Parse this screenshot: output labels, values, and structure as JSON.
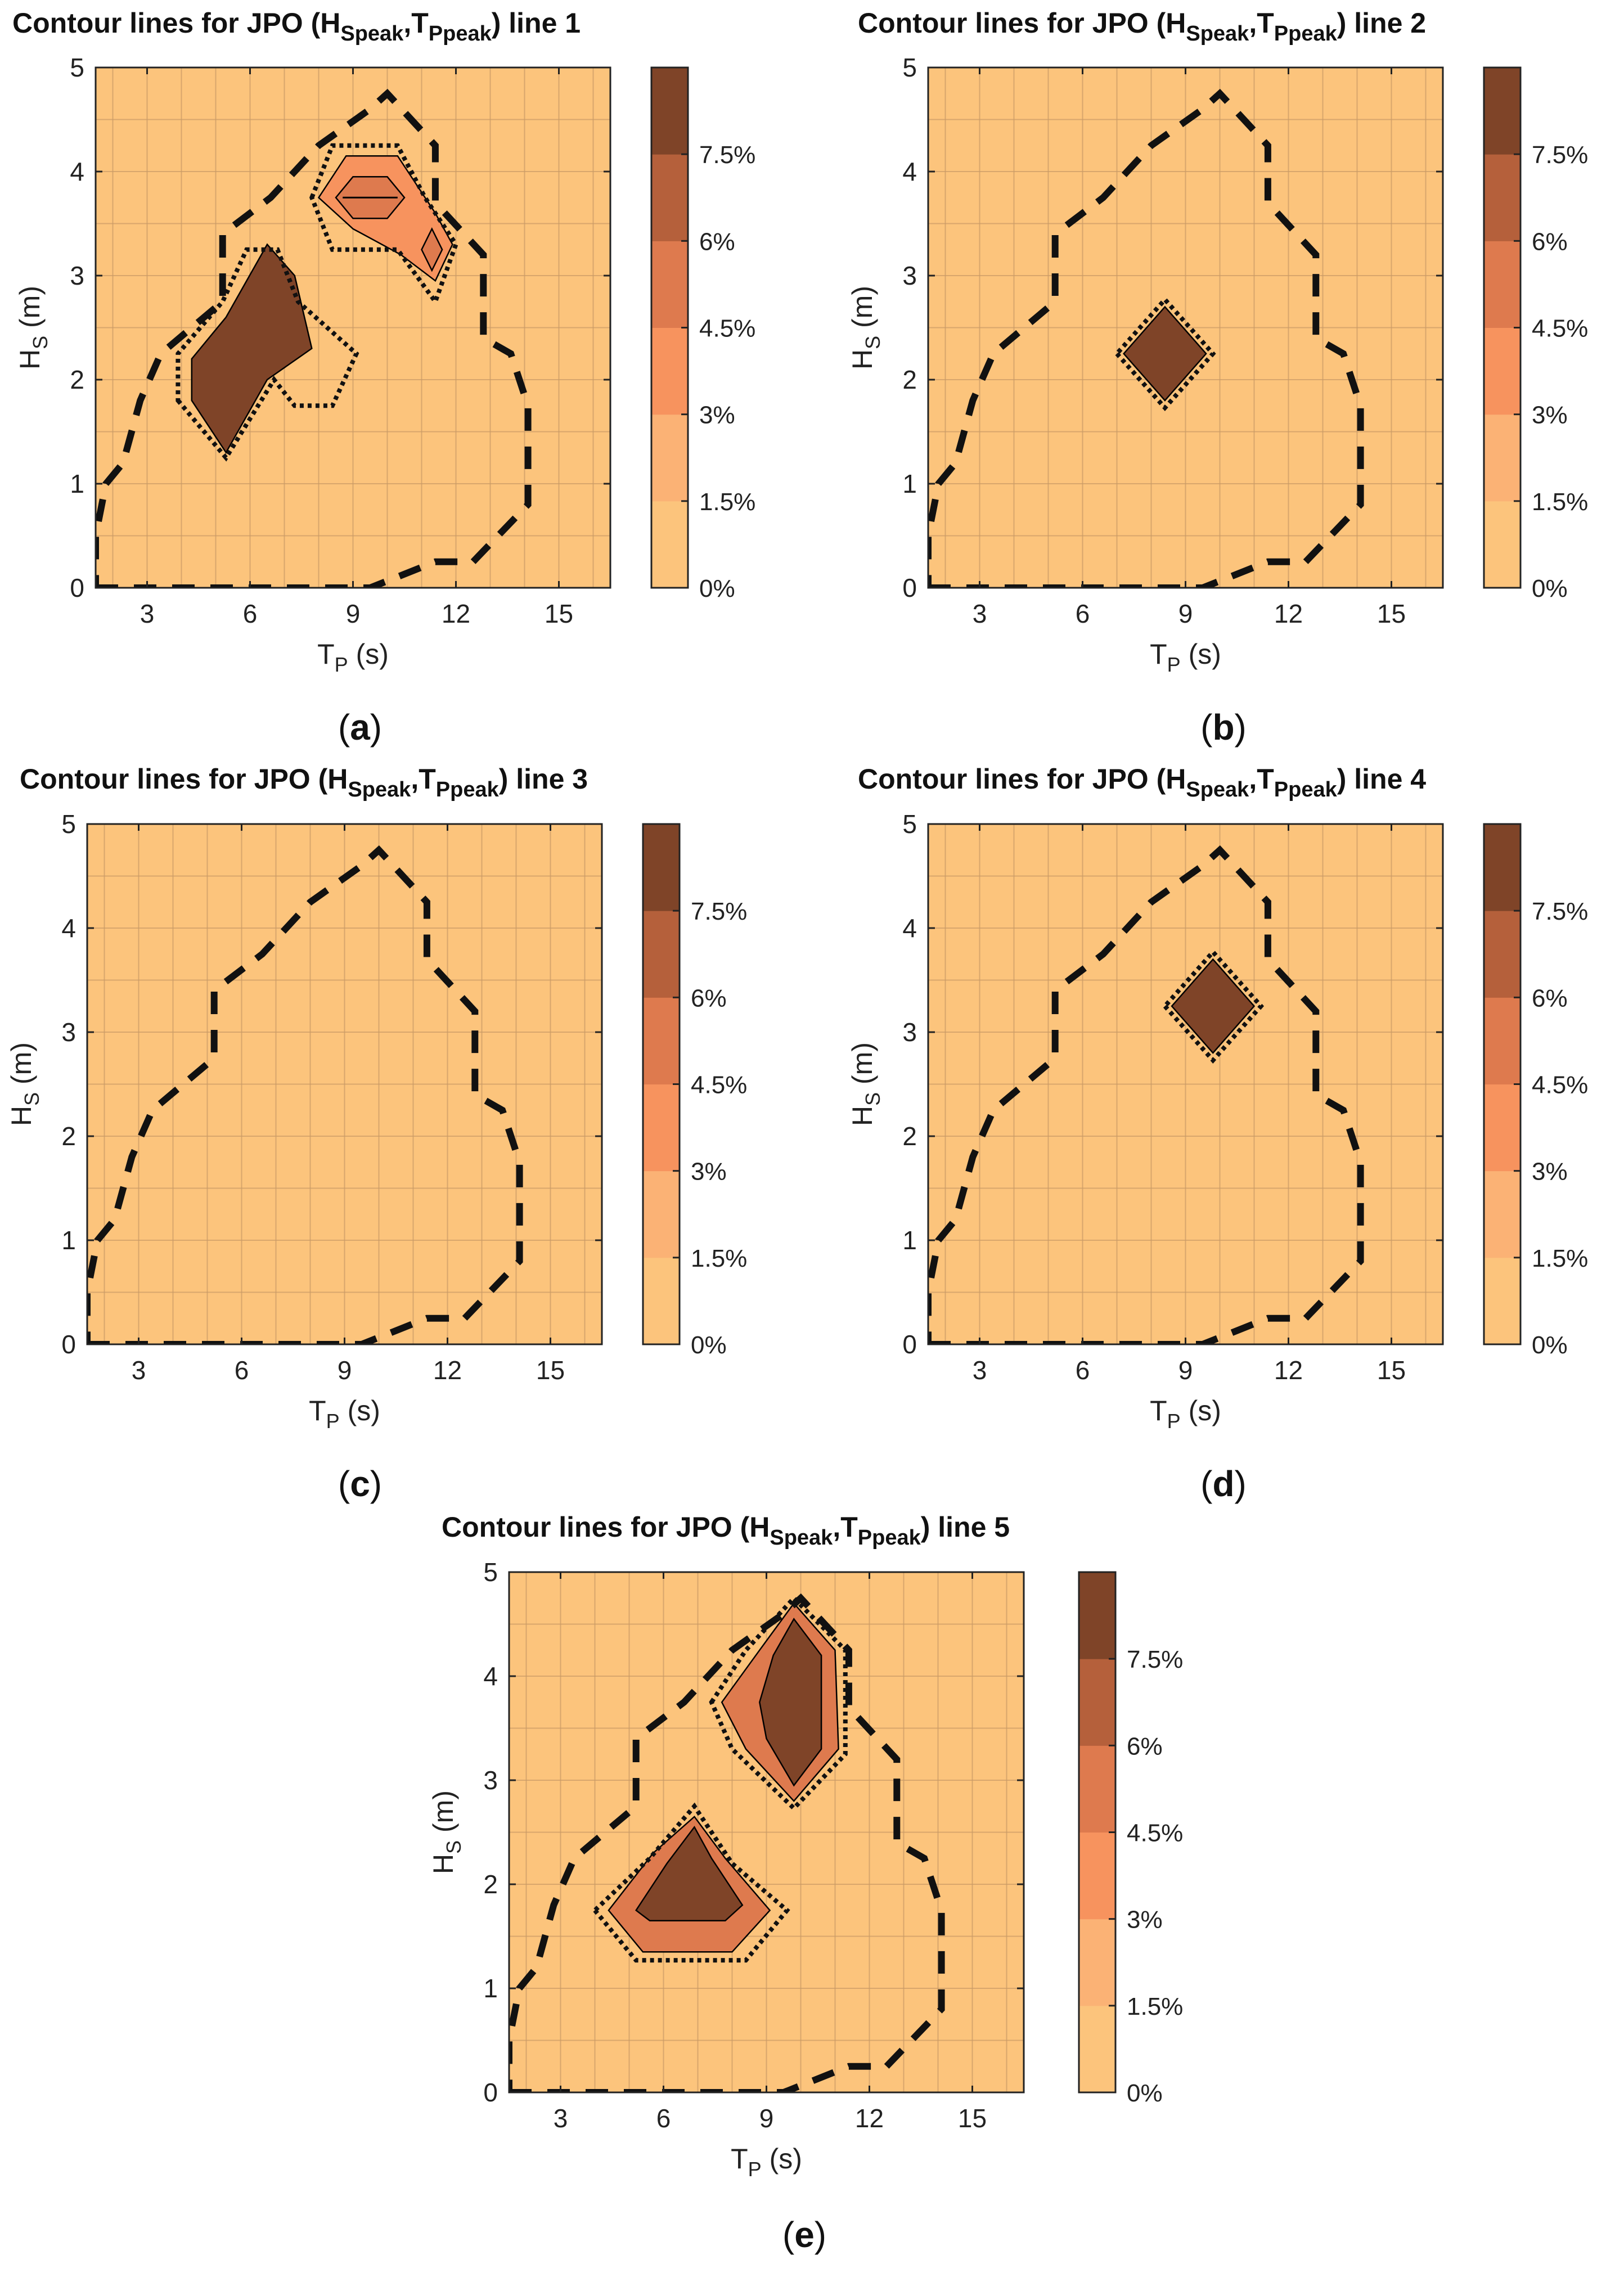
{
  "figure": {
    "colors": {
      "background": "#fcc47c",
      "grid": "#c99a66",
      "band_colors": [
        "#fcc47c",
        "#fbb275",
        "#f7935e",
        "#de7a4e",
        "#b5603b",
        "#7f4428"
      ],
      "boundary": "#111111"
    },
    "colorbar_ticks": [
      "0%",
      "1.5%",
      "3%",
      "4.5%",
      "6%",
      "7.5%"
    ],
    "x_axis_label_main": "T",
    "x_axis_label_sub": "P",
    "x_axis_label_unit": " (s)",
    "y_axis_label_main": "H",
    "y_axis_label_sub": "S",
    "y_axis_label_unit": " (m)",
    "title_prefix": "Contour lines for JPO (H",
    "title_sub1": "Speak",
    "title_mid": ",T",
    "title_sub2": "Ppeak",
    "title_suffix_base": ") line "
  },
  "chart_data": [
    {
      "type": "contour",
      "panel_label": "(a)",
      "title_line_number": "1",
      "xlabel": "T_P (s)",
      "ylabel": "H_S (m)",
      "xlim": [
        1.5,
        16.5
      ],
      "ylim": [
        0,
        5
      ],
      "xticks": [
        3,
        6,
        9,
        12,
        15
      ],
      "yticks": [
        0,
        1,
        2,
        3,
        4,
        5
      ],
      "grid": true,
      "colorbar_ticks": [
        "0%",
        "1.5%",
        "3%",
        "4.5%",
        "6%",
        "7.5%"
      ],
      "regions": [
        {
          "level": 5,
          "points": [
            [
              4.3,
              1.8
            ],
            [
              5.3,
              1.3
            ],
            [
              6.5,
              2.0
            ],
            [
              7.8,
              2.3
            ],
            [
              7.3,
              3.0
            ],
            [
              6.5,
              3.3
            ],
            [
              5.3,
              2.6
            ],
            [
              4.3,
              2.2
            ]
          ]
        },
        {
          "level": 2,
          "points": [
            [
              8.0,
              3.75
            ],
            [
              8.8,
              4.15
            ],
            [
              10.3,
              4.15
            ],
            [
              11.4,
              3.6
            ],
            [
              11.9,
              3.3
            ],
            [
              11.4,
              2.95
            ],
            [
              10.4,
              3.2
            ],
            [
              9.0,
              3.45
            ]
          ]
        },
        {
          "level": 3,
          "points": [
            [
              8.5,
              3.75
            ],
            [
              9.0,
              3.95
            ],
            [
              10.0,
              3.95
            ],
            [
              10.5,
              3.75
            ],
            [
              10.0,
              3.55
            ],
            [
              9.0,
              3.55
            ]
          ]
        },
        {
          "level": 4,
          "points": [
            [
              8.7,
              3.75
            ],
            [
              10.3,
              3.75
            ]
          ]
        },
        {
          "level": 3,
          "points": [
            [
              11.0,
              3.25
            ],
            [
              11.3,
              3.45
            ],
            [
              11.6,
              3.25
            ],
            [
              11.3,
              3.05
            ]
          ]
        }
      ],
      "dotted_outlines": [
        [
          [
            3.9,
            1.8
          ],
          [
            5.3,
            1.25
          ],
          [
            6.7,
            2.0
          ],
          [
            7.3,
            1.75
          ],
          [
            8.4,
            1.75
          ],
          [
            9.1,
            2.25
          ],
          [
            7.4,
            2.75
          ],
          [
            6.8,
            3.25
          ],
          [
            5.9,
            3.25
          ],
          [
            5.2,
            2.75
          ],
          [
            3.9,
            2.25
          ]
        ],
        [
          [
            7.8,
            3.75
          ],
          [
            8.4,
            4.25
          ],
          [
            10.3,
            4.25
          ],
          [
            11.1,
            3.75
          ],
          [
            12.0,
            3.3
          ],
          [
            11.4,
            2.75
          ],
          [
            10.3,
            3.25
          ],
          [
            8.4,
            3.25
          ]
        ]
      ],
      "dashed_boundary": [
        [
          1.5,
          0.0
        ],
        [
          9.5,
          0.0
        ],
        [
          11.4,
          0.25
        ],
        [
          12.5,
          0.25
        ],
        [
          14.1,
          0.8
        ],
        [
          14.1,
          1.75
        ],
        [
          13.6,
          2.25
        ],
        [
          12.8,
          2.4
        ],
        [
          12.8,
          3.2
        ],
        [
          11.4,
          3.7
        ],
        [
          11.4,
          4.25
        ],
        [
          10.0,
          4.75
        ],
        [
          9.5,
          4.6
        ],
        [
          8.0,
          4.25
        ],
        [
          6.6,
          3.75
        ],
        [
          5.2,
          3.4
        ],
        [
          5.2,
          2.75
        ],
        [
          3.4,
          2.25
        ],
        [
          2.8,
          1.8
        ],
        [
          2.3,
          1.2
        ],
        [
          1.8,
          1.0
        ],
        [
          1.5,
          0.5
        ]
      ]
    },
    {
      "type": "contour",
      "panel_label": "(b)",
      "title_line_number": "2",
      "xlabel": "T_P (s)",
      "ylabel": "H_S (m)",
      "xlim": [
        1.5,
        16.5
      ],
      "ylim": [
        0,
        5
      ],
      "xticks": [
        3,
        6,
        9,
        12,
        15
      ],
      "yticks": [
        0,
        1,
        2,
        3,
        4,
        5
      ],
      "grid": true,
      "colorbar_ticks": [
        "0%",
        "1.5%",
        "3%",
        "4.5%",
        "6%",
        "7.5%"
      ],
      "regions": [
        {
          "level": 5,
          "points": [
            [
              7.2,
              2.25
            ],
            [
              8.4,
              1.8
            ],
            [
              9.6,
              2.25
            ],
            [
              8.4,
              2.7
            ]
          ]
        }
      ],
      "dotted_outlines": [
        [
          [
            7.0,
            2.25
          ],
          [
            8.4,
            1.73
          ],
          [
            9.8,
            2.25
          ],
          [
            8.4,
            2.77
          ]
        ]
      ],
      "dashed_boundary": [
        [
          1.5,
          0.0
        ],
        [
          9.5,
          0.0
        ],
        [
          11.4,
          0.25
        ],
        [
          12.5,
          0.25
        ],
        [
          14.1,
          0.8
        ],
        [
          14.1,
          1.75
        ],
        [
          13.6,
          2.25
        ],
        [
          12.8,
          2.4
        ],
        [
          12.8,
          3.2
        ],
        [
          11.4,
          3.7
        ],
        [
          11.4,
          4.25
        ],
        [
          10.0,
          4.75
        ],
        [
          9.5,
          4.6
        ],
        [
          8.0,
          4.25
        ],
        [
          6.6,
          3.75
        ],
        [
          5.2,
          3.4
        ],
        [
          5.2,
          2.75
        ],
        [
          3.4,
          2.25
        ],
        [
          2.8,
          1.8
        ],
        [
          2.3,
          1.2
        ],
        [
          1.8,
          1.0
        ],
        [
          1.5,
          0.5
        ]
      ]
    },
    {
      "type": "contour",
      "panel_label": "(c)",
      "title_line_number": "3",
      "xlabel": "T_P (s)",
      "ylabel": "H_S (m)",
      "xlim": [
        1.5,
        16.5
      ],
      "ylim": [
        0,
        5
      ],
      "xticks": [
        3,
        6,
        9,
        12,
        15
      ],
      "yticks": [
        0,
        1,
        2,
        3,
        4,
        5
      ],
      "grid": true,
      "colorbar_ticks": [
        "0%",
        "1.5%",
        "3%",
        "4.5%",
        "6%",
        "7.5%"
      ],
      "regions": [],
      "dotted_outlines": [],
      "dashed_boundary": [
        [
          1.5,
          0.0
        ],
        [
          9.5,
          0.0
        ],
        [
          11.4,
          0.25
        ],
        [
          12.5,
          0.25
        ],
        [
          14.1,
          0.8
        ],
        [
          14.1,
          1.75
        ],
        [
          13.6,
          2.25
        ],
        [
          12.8,
          2.4
        ],
        [
          12.8,
          3.2
        ],
        [
          11.4,
          3.7
        ],
        [
          11.4,
          4.25
        ],
        [
          10.0,
          4.75
        ],
        [
          9.5,
          4.6
        ],
        [
          8.0,
          4.25
        ],
        [
          6.6,
          3.75
        ],
        [
          5.2,
          3.4
        ],
        [
          5.2,
          2.75
        ],
        [
          3.4,
          2.25
        ],
        [
          2.8,
          1.8
        ],
        [
          2.3,
          1.2
        ],
        [
          1.8,
          1.0
        ],
        [
          1.5,
          0.5
        ]
      ]
    },
    {
      "type": "contour",
      "panel_label": "(d)",
      "title_line_number": "4",
      "xlabel": "T_P (s)",
      "ylabel": "H_S (m)",
      "xlim": [
        1.5,
        16.5
      ],
      "ylim": [
        0,
        5
      ],
      "xticks": [
        3,
        6,
        9,
        12,
        15
      ],
      "yticks": [
        0,
        1,
        2,
        3,
        4,
        5
      ],
      "grid": true,
      "colorbar_ticks": [
        "0%",
        "1.5%",
        "3%",
        "4.5%",
        "6%",
        "7.5%"
      ],
      "regions": [
        {
          "level": 5,
          "points": [
            [
              8.6,
              3.25
            ],
            [
              9.8,
              2.8
            ],
            [
              11.0,
              3.25
            ],
            [
              9.8,
              3.7
            ]
          ]
        }
      ],
      "dotted_outlines": [
        [
          [
            8.4,
            3.25
          ],
          [
            9.8,
            2.73
          ],
          [
            11.2,
            3.25
          ],
          [
            9.8,
            3.77
          ]
        ]
      ],
      "dashed_boundary": [
        [
          1.5,
          0.0
        ],
        [
          9.5,
          0.0
        ],
        [
          11.4,
          0.25
        ],
        [
          12.5,
          0.25
        ],
        [
          14.1,
          0.8
        ],
        [
          14.1,
          1.75
        ],
        [
          13.6,
          2.25
        ],
        [
          12.8,
          2.4
        ],
        [
          12.8,
          3.2
        ],
        [
          11.4,
          3.7
        ],
        [
          11.4,
          4.25
        ],
        [
          10.0,
          4.75
        ],
        [
          9.5,
          4.6
        ],
        [
          8.0,
          4.25
        ],
        [
          6.6,
          3.75
        ],
        [
          5.2,
          3.4
        ],
        [
          5.2,
          2.75
        ],
        [
          3.4,
          2.25
        ],
        [
          2.8,
          1.8
        ],
        [
          2.3,
          1.2
        ],
        [
          1.8,
          1.0
        ],
        [
          1.5,
          0.5
        ]
      ]
    },
    {
      "type": "contour",
      "panel_label": "(e)",
      "title_line_number": "5",
      "xlabel": "T_P (s)",
      "ylabel": "H_S (m)",
      "xlim": [
        1.5,
        16.5
      ],
      "ylim": [
        0,
        5
      ],
      "xticks": [
        3,
        6,
        9,
        12,
        15
      ],
      "yticks": [
        0,
        1,
        2,
        3,
        4,
        5
      ],
      "grid": true,
      "colorbar_ticks": [
        "0%",
        "1.5%",
        "3%",
        "4.5%",
        "6%",
        "7.5%"
      ],
      "regions": [
        {
          "level": 3,
          "points": [
            [
              4.4,
              1.75
            ],
            [
              5.4,
              1.35
            ],
            [
              8.0,
              1.35
            ],
            [
              9.1,
              1.75
            ],
            [
              7.8,
              2.25
            ],
            [
              6.9,
              2.65
            ],
            [
              5.7,
              2.3
            ]
          ]
        },
        {
          "level": 5,
          "points": [
            [
              5.2,
              1.75
            ],
            [
              5.6,
              1.65
            ],
            [
              7.8,
              1.65
            ],
            [
              8.3,
              1.8
            ],
            [
              7.4,
              2.25
            ],
            [
              6.9,
              2.55
            ],
            [
              6.1,
              2.2
            ]
          ]
        },
        {
          "level": 3,
          "points": [
            [
              7.7,
              3.75
            ],
            [
              8.8,
              4.25
            ],
            [
              9.8,
              4.7
            ],
            [
              11.0,
              4.25
            ],
            [
              11.1,
              3.3
            ],
            [
              9.8,
              2.8
            ],
            [
              8.4,
              3.3
            ]
          ]
        },
        {
          "level": 5,
          "points": [
            [
              8.8,
              3.75
            ],
            [
              9.2,
              4.2
            ],
            [
              9.8,
              4.55
            ],
            [
              10.6,
              4.2
            ],
            [
              10.6,
              3.3
            ],
            [
              9.8,
              2.95
            ],
            [
              9.0,
              3.4
            ]
          ]
        }
      ],
      "dotted_outlines": [
        [
          [
            4.0,
            1.75
          ],
          [
            5.2,
            1.27
          ],
          [
            8.4,
            1.27
          ],
          [
            9.6,
            1.75
          ],
          [
            8.0,
            2.2
          ],
          [
            6.9,
            2.75
          ],
          [
            5.6,
            2.25
          ]
        ],
        [
          [
            7.4,
            3.75
          ],
          [
            8.4,
            4.25
          ],
          [
            9.8,
            4.75
          ],
          [
            11.3,
            4.25
          ],
          [
            11.3,
            3.25
          ],
          [
            9.8,
            2.73
          ],
          [
            8.0,
            3.3
          ]
        ]
      ],
      "dashed_boundary": [
        [
          1.5,
          0.0
        ],
        [
          9.5,
          0.0
        ],
        [
          11.4,
          0.25
        ],
        [
          12.5,
          0.25
        ],
        [
          14.1,
          0.8
        ],
        [
          14.1,
          1.75
        ],
        [
          13.6,
          2.25
        ],
        [
          12.8,
          2.4
        ],
        [
          12.8,
          3.2
        ],
        [
          11.4,
          3.7
        ],
        [
          11.4,
          4.25
        ],
        [
          10.0,
          4.75
        ],
        [
          9.5,
          4.6
        ],
        [
          8.0,
          4.25
        ],
        [
          6.6,
          3.75
        ],
        [
          5.2,
          3.4
        ],
        [
          5.2,
          2.75
        ],
        [
          3.4,
          2.25
        ],
        [
          2.8,
          1.8
        ],
        [
          2.3,
          1.2
        ],
        [
          1.8,
          1.0
        ],
        [
          1.5,
          0.5
        ]
      ]
    }
  ]
}
